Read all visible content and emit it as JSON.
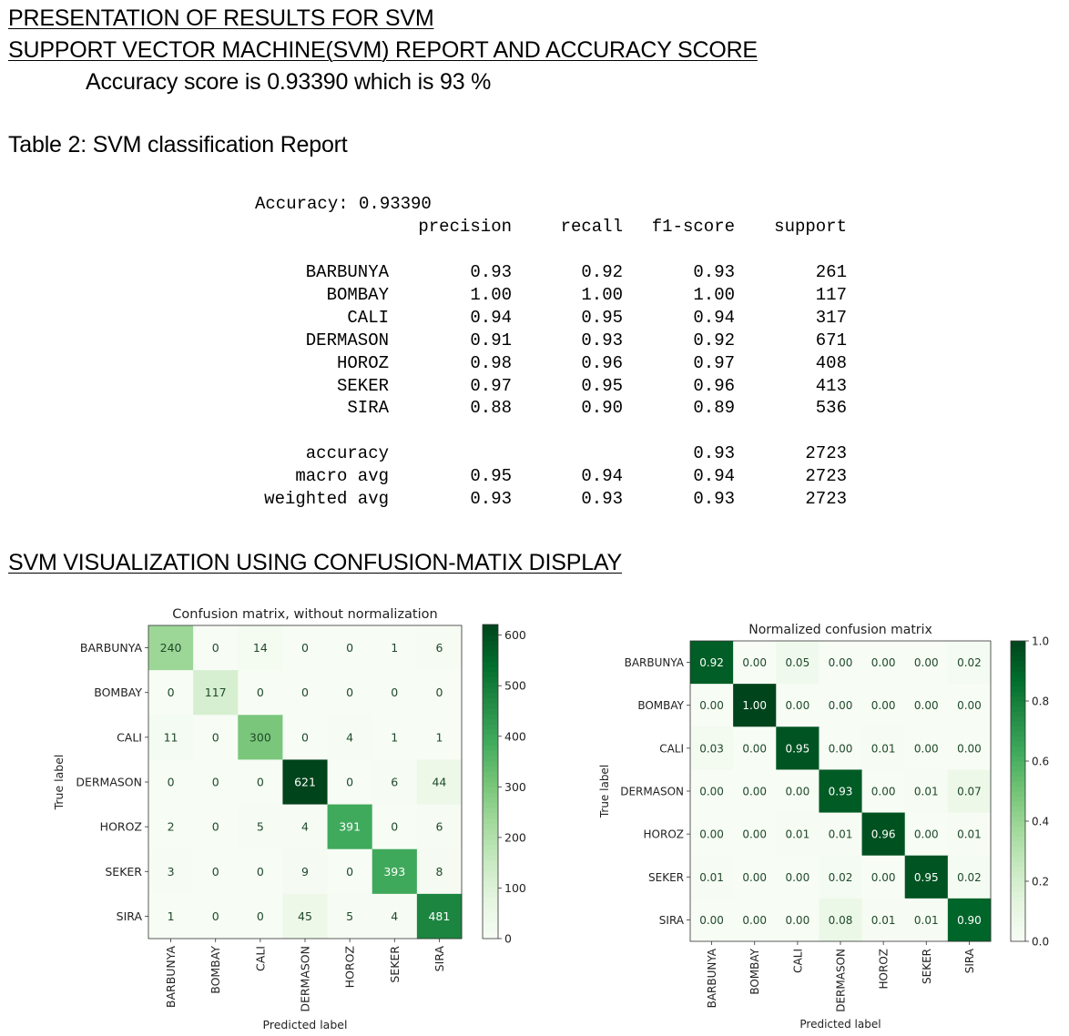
{
  "headings": {
    "h1": "PRESENTATION OF RESULTS FOR SVM",
    "h2": "SUPPORT VECTOR MACHINE(SVM) REPORT AND ACCURACY SCORE",
    "accuracy_line": "Accuracy score is 0.93390 which is 93 %",
    "table_caption": "Table 2: SVM classification Report",
    "h3": "SVM VISUALIZATION USING CONFUSION-MATIX DISPLAY"
  },
  "report": {
    "accuracy_line": "Accuracy: 0.93390",
    "columns": [
      "precision",
      "recall",
      "f1-score",
      "support"
    ],
    "rows": [
      {
        "label": "BARBUNYA",
        "precision": "0.93",
        "recall": "0.92",
        "f1": "0.93",
        "support": "261"
      },
      {
        "label": "BOMBAY",
        "precision": "1.00",
        "recall": "1.00",
        "f1": "1.00",
        "support": "117"
      },
      {
        "label": "CALI",
        "precision": "0.94",
        "recall": "0.95",
        "f1": "0.94",
        "support": "317"
      },
      {
        "label": "DERMASON",
        "precision": "0.91",
        "recall": "0.93",
        "f1": "0.92",
        "support": "671"
      },
      {
        "label": "HOROZ",
        "precision": "0.98",
        "recall": "0.96",
        "f1": "0.97",
        "support": "408"
      },
      {
        "label": "SEKER",
        "precision": "0.97",
        "recall": "0.95",
        "f1": "0.96",
        "support": "413"
      },
      {
        "label": "SIRA",
        "precision": "0.88",
        "recall": "0.90",
        "f1": "0.89",
        "support": "536"
      }
    ],
    "summary": [
      {
        "label": "accuracy",
        "precision": "",
        "recall": "",
        "f1": "0.93",
        "support": "2723"
      },
      {
        "label": "macro avg",
        "precision": "0.95",
        "recall": "0.94",
        "f1": "0.94",
        "support": "2723"
      },
      {
        "label": "weighted avg",
        "precision": "0.93",
        "recall": "0.93",
        "f1": "0.93",
        "support": "2723"
      }
    ]
  },
  "chart_data": [
    {
      "type": "heatmap",
      "title": "Confusion matrix, without normalization",
      "xlabel": "Predicted label",
      "ylabel": "True label",
      "x_categories": [
        "BARBUNYA",
        "BOMBAY",
        "CALI",
        "DERMASON",
        "HOROZ",
        "SEKER",
        "SIRA"
      ],
      "y_categories": [
        "BARBUNYA",
        "BOMBAY",
        "CALI",
        "DERMASON",
        "HOROZ",
        "SEKER",
        "SIRA"
      ],
      "values": [
        [
          240,
          0,
          14,
          0,
          0,
          1,
          6
        ],
        [
          0,
          117,
          0,
          0,
          0,
          0,
          0
        ],
        [
          11,
          0,
          300,
          0,
          4,
          1,
          1
        ],
        [
          0,
          0,
          0,
          621,
          0,
          6,
          44
        ],
        [
          2,
          0,
          5,
          4,
          391,
          0,
          6
        ],
        [
          3,
          0,
          0,
          9,
          0,
          393,
          8
        ],
        [
          1,
          0,
          0,
          45,
          5,
          4,
          481
        ]
      ],
      "value_format": "int",
      "colorbar_range": [
        0,
        621
      ],
      "colorbar_ticks": [
        0,
        100,
        200,
        300,
        400,
        500,
        600
      ],
      "colormap": "Greens",
      "colormap_light": "#f7fcf5",
      "colormap_dark": "#00441b"
    },
    {
      "type": "heatmap",
      "title": "Normalized confusion matrix",
      "xlabel": "Predicted label",
      "ylabel": "True label",
      "x_categories": [
        "BARBUNYA",
        "BOMBAY",
        "CALI",
        "DERMASON",
        "HOROZ",
        "SEKER",
        "SIRA"
      ],
      "y_categories": [
        "BARBUNYA",
        "BOMBAY",
        "CALI",
        "DERMASON",
        "HOROZ",
        "SEKER",
        "SIRA"
      ],
      "values": [
        [
          0.92,
          0.0,
          0.05,
          0.0,
          0.0,
          0.0,
          0.02
        ],
        [
          0.0,
          1.0,
          0.0,
          0.0,
          0.0,
          0.0,
          0.0
        ],
        [
          0.03,
          0.0,
          0.95,
          0.0,
          0.01,
          0.0,
          0.0
        ],
        [
          0.0,
          0.0,
          0.0,
          0.93,
          0.0,
          0.01,
          0.07
        ],
        [
          0.0,
          0.0,
          0.01,
          0.01,
          0.96,
          0.0,
          0.01
        ],
        [
          0.01,
          0.0,
          0.0,
          0.02,
          0.0,
          0.95,
          0.02
        ],
        [
          0.0,
          0.0,
          0.0,
          0.08,
          0.01,
          0.01,
          0.9
        ]
      ],
      "value_format": "2dp",
      "colorbar_range": [
        0,
        1.0
      ],
      "colorbar_ticks": [
        0.0,
        0.2,
        0.4,
        0.6,
        0.8,
        1.0
      ],
      "colorbar_tick_labels": [
        "0.0",
        "0.2",
        "0.4",
        "0.6",
        "0.8",
        "1.0"
      ],
      "colormap": "Greens",
      "colormap_light": "#f7fcf5",
      "colormap_dark": "#00441b"
    }
  ]
}
